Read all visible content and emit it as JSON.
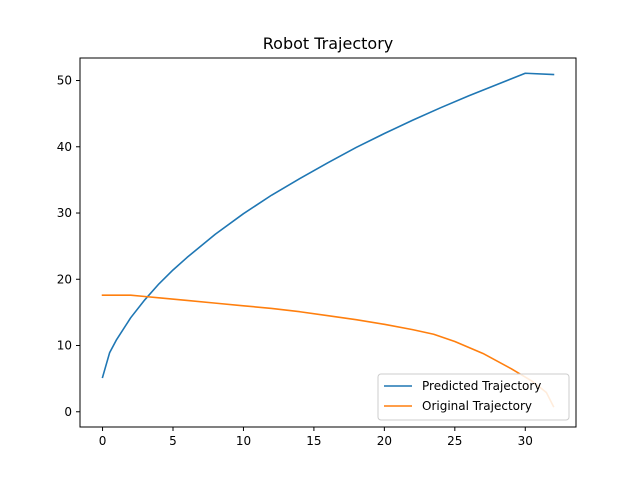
{
  "chart_data": {
    "type": "line",
    "title": "Robot Trajectory",
    "xlabel": "",
    "ylabel": "",
    "xlim": [
      -1.6,
      33.6
    ],
    "ylim": [
      -2.3,
      53.4
    ],
    "xticks": [
      0,
      5,
      10,
      15,
      20,
      25,
      30
    ],
    "yticks": [
      0,
      10,
      20,
      30,
      40,
      50
    ],
    "grid": false,
    "legend_position": "lower right",
    "series": [
      {
        "name": "Predicted Trajectory",
        "color": "#1f77b4",
        "x": [
          0,
          0.5,
          1,
          2,
          3,
          4,
          5,
          6,
          8,
          10,
          12,
          14,
          16,
          18,
          20,
          22,
          24,
          26,
          28,
          30,
          32
        ],
        "y": [
          5.2,
          8.9,
          10.9,
          14.2,
          16.9,
          19.3,
          21.4,
          23.3,
          26.8,
          29.9,
          32.7,
          35.2,
          37.6,
          39.9,
          42.0,
          44.0,
          45.9,
          47.7,
          49.4,
          51.1,
          50.9
        ]
      },
      {
        "name": "Original Trajectory",
        "color": "#ff7f0e",
        "x": [
          0,
          1,
          2,
          3,
          4,
          6,
          8,
          10,
          12,
          14,
          16,
          18,
          20,
          22,
          23.5,
          25,
          27,
          29,
          30.5,
          31.5,
          32
        ],
        "y": [
          17.6,
          17.6,
          17.6,
          17.4,
          17.2,
          16.8,
          16.4,
          16.0,
          15.6,
          15.1,
          14.5,
          13.9,
          13.2,
          12.4,
          11.7,
          10.6,
          8.8,
          6.5,
          4.6,
          2.9,
          0.8
        ]
      }
    ]
  }
}
